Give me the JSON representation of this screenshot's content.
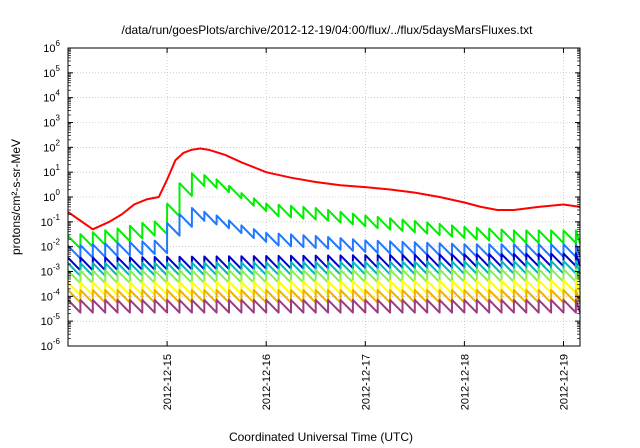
{
  "chart_data": {
    "type": "line",
    "title": "/data/run/goesPlots/archive/2012-12-19/04:00/flux/../flux/5daysMarsFluxes.txt",
    "xlabel": "Coordinated Universal Time (UTC)",
    "ylabel": "protons/cm²-s-sr-MeV",
    "yscale": "log",
    "ylim": [
      1e-06,
      1000000.0
    ],
    "xlim": [
      "2012-12-14 00:00",
      "2012-12-19 04:00"
    ],
    "grid": true,
    "legend": "none",
    "x_ticks": [
      "2012-12-15",
      "2012-12-16",
      "2012-12-17",
      "2012-12-18",
      "2012-12-19"
    ],
    "y_ticks": [
      {
        "base": "10",
        "exp": "6"
      },
      {
        "base": "10",
        "exp": "5"
      },
      {
        "base": "10",
        "exp": "4"
      },
      {
        "base": "10",
        "exp": "3"
      },
      {
        "base": "10",
        "exp": "2"
      },
      {
        "base": "10",
        "exp": "1"
      },
      {
        "base": "10",
        "exp": "0"
      },
      {
        "base": "10",
        "exp": "-1"
      },
      {
        "base": "10",
        "exp": "-2"
      },
      {
        "base": "10",
        "exp": "-3"
      },
      {
        "base": "10",
        "exp": "-4"
      },
      {
        "base": "10",
        "exp": "-5"
      },
      {
        "base": "10",
        "exp": "-6"
      }
    ],
    "series": [
      {
        "color": "#ff0000",
        "sawtooth": false,
        "points": [
          [
            "2012-12-14 00:00",
            0.25
          ],
          [
            "2012-12-14 06:00",
            0.05
          ],
          [
            "2012-12-14 10:00",
            0.1
          ],
          [
            "2012-12-14 13:00",
            0.2
          ],
          [
            "2012-12-14 16:00",
            0.5
          ],
          [
            "2012-12-14 19:00",
            0.8
          ],
          [
            "2012-12-14 22:00",
            1.0
          ],
          [
            "2012-12-15 00:00",
            5
          ],
          [
            "2012-12-15 02:00",
            30
          ],
          [
            "2012-12-15 04:00",
            60
          ],
          [
            "2012-12-15 06:00",
            80
          ],
          [
            "2012-12-15 08:00",
            90
          ],
          [
            "2012-12-15 10:00",
            80
          ],
          [
            "2012-12-15 14:00",
            50
          ],
          [
            "2012-12-15 18:00",
            25
          ],
          [
            "2012-12-16 00:00",
            10
          ],
          [
            "2012-12-16 06:00",
            6
          ],
          [
            "2012-12-16 12:00",
            4
          ],
          [
            "2012-12-16 18:00",
            3
          ],
          [
            "2012-12-17 00:00",
            2.5
          ],
          [
            "2012-12-17 06:00",
            2
          ],
          [
            "2012-12-17 12:00",
            1.5
          ],
          [
            "2012-12-17 18:00",
            1
          ],
          [
            "2012-12-18 00:00",
            0.6
          ],
          [
            "2012-12-18 04:00",
            0.4
          ],
          [
            "2012-12-18 08:00",
            0.3
          ],
          [
            "2012-12-18 12:00",
            0.3
          ],
          [
            "2012-12-18 18:00",
            0.4
          ],
          [
            "2012-12-19 00:00",
            0.5
          ],
          [
            "2012-12-19 04:00",
            0.4
          ]
        ]
      },
      {
        "color": "#00ee00",
        "sawtooth": true,
        "points": [
          [
            "2012-12-14 00:00",
            0.015
          ],
          [
            "2012-12-14 12:00",
            0.03
          ],
          [
            "2012-12-14 18:00",
            0.05
          ],
          [
            "2012-12-14 22:00",
            0.06
          ],
          [
            "2012-12-15 00:00",
            0.3
          ],
          [
            "2012-12-15 03:00",
            2
          ],
          [
            "2012-12-15 06:00",
            5
          ],
          [
            "2012-12-15 10:00",
            4
          ],
          [
            "2012-12-15 14:00",
            2
          ],
          [
            "2012-12-15 18:00",
            0.8
          ],
          [
            "2012-12-16 00:00",
            0.3
          ],
          [
            "2012-12-16 12:00",
            0.2
          ],
          [
            "2012-12-17 00:00",
            0.1
          ],
          [
            "2012-12-17 12:00",
            0.06
          ],
          [
            "2012-12-18 00:00",
            0.035
          ],
          [
            "2012-12-18 12:00",
            0.025
          ],
          [
            "2012-12-19 04:00",
            0.025
          ]
        ]
      },
      {
        "color": "#1f78ff",
        "sawtooth": true,
        "points": [
          [
            "2012-12-14 00:00",
            0.006
          ],
          [
            "2012-12-14 12:00",
            0.008
          ],
          [
            "2012-12-14 22:00",
            0.01
          ],
          [
            "2012-12-15 00:00",
            0.05
          ],
          [
            "2012-12-15 04:00",
            0.15
          ],
          [
            "2012-12-15 06:00",
            0.2
          ],
          [
            "2012-12-15 12:00",
            0.1
          ],
          [
            "2012-12-15 18:00",
            0.04
          ],
          [
            "2012-12-16 00:00",
            0.02
          ],
          [
            "2012-12-16 12:00",
            0.015
          ],
          [
            "2012-12-17 00:00",
            0.01
          ],
          [
            "2012-12-18 00:00",
            0.007
          ],
          [
            "2012-12-19 04:00",
            0.007
          ]
        ]
      },
      {
        "color": "#0000cc",
        "sawtooth": true,
        "points": [
          [
            "2012-12-14 00:00",
            0.002
          ],
          [
            "2012-12-19 04:00",
            0.003
          ]
        ]
      },
      {
        "color": "#00b8b8",
        "sawtooth": true,
        "points": [
          [
            "2012-12-14 00:00",
            0.0012
          ],
          [
            "2012-12-19 04:00",
            0.0015
          ]
        ]
      },
      {
        "color": "#88ee55",
        "sawtooth": true,
        "points": [
          [
            "2012-12-14 00:00",
            0.0006
          ],
          [
            "2012-12-19 04:00",
            0.0007
          ]
        ]
      },
      {
        "color": "#ffff00",
        "sawtooth": true,
        "points": [
          [
            "2012-12-14 00:00",
            0.0002
          ],
          [
            "2012-12-19 04:00",
            0.00025
          ]
        ]
      },
      {
        "color": "#f0b000",
        "sawtooth": true,
        "points": [
          [
            "2012-12-14 00:00",
            0.0001
          ],
          [
            "2012-12-19 04:00",
            0.0001
          ]
        ]
      },
      {
        "color": "#9a3c80",
        "sawtooth": true,
        "points": [
          [
            "2012-12-14 00:00",
            4e-05
          ],
          [
            "2012-12-19 04:00",
            4e-05
          ]
        ]
      }
    ]
  }
}
